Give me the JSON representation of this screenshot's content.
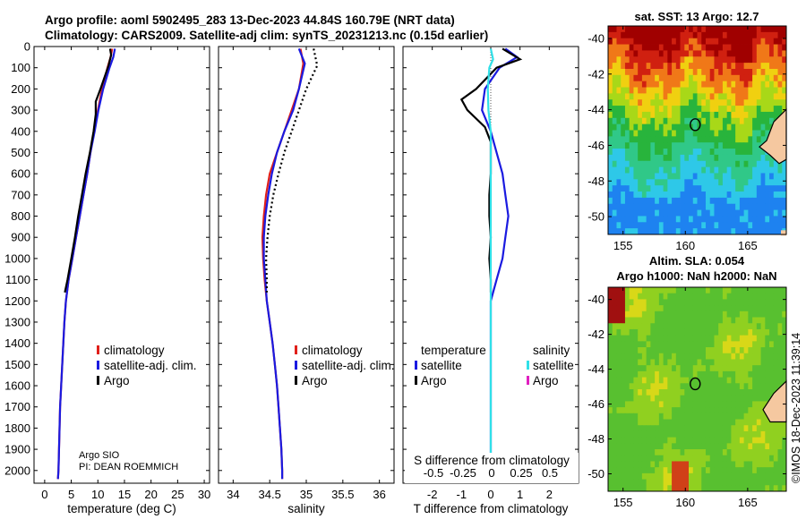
{
  "header": {
    "line1": "Argo profile: aoml 5902495_283 13-Dec-2023 44.84S 160.79E (NRT data)",
    "line2": "Climatology: CARS2009. Satellite-adj clim: synTS_20231213.nc (0.15d earlier)"
  },
  "colors": {
    "climatology": "#e0201a",
    "satellite_adj": "#1a1ae0",
    "argo": "#000000",
    "sat_t": "#1a1ae0",
    "sat_s": "#30e0e8",
    "argo_s": "#e020c0"
  },
  "depth_axis": {
    "ticks": [
      0,
      100,
      200,
      300,
      400,
      500,
      600,
      700,
      800,
      900,
      1000,
      1100,
      1200,
      1300,
      1400,
      1500,
      1600,
      1700,
      1800,
      1900,
      2000
    ],
    "range": [
      0,
      2060
    ]
  },
  "chart_data": [
    {
      "type": "line",
      "name": "temperature",
      "xlabel": "temperature (deg C)",
      "xlim": [
        -2,
        31
      ],
      "xticks": [
        0,
        5,
        10,
        15,
        20,
        25,
        30
      ],
      "legend": [
        "climatology",
        "satellite-adj. clim.",
        "Argo"
      ],
      "series": [
        {
          "name": "climatology",
          "color": "climatology",
          "points": [
            [
              12.7,
              10
            ],
            [
              12.4,
              50
            ],
            [
              11.8,
              100
            ],
            [
              10.8,
              200
            ],
            [
              10.0,
              300
            ],
            [
              9.3,
              400
            ],
            [
              8.6,
              500
            ],
            [
              8.0,
              600
            ],
            [
              7.3,
              700
            ],
            [
              6.6,
              800
            ],
            [
              5.9,
              900
            ],
            [
              5.2,
              1000
            ],
            [
              4.5,
              1100
            ],
            [
              4.0,
              1200
            ],
            [
              3.7,
              1300
            ],
            [
              3.5,
              1400
            ],
            [
              3.3,
              1500
            ],
            [
              3.1,
              1600
            ],
            [
              2.9,
              1700
            ],
            [
              2.8,
              1800
            ],
            [
              2.7,
              1900
            ],
            [
              2.6,
              2000
            ],
            [
              2.5,
              2040
            ]
          ]
        },
        {
          "name": "satellite-adj. clim.",
          "color": "satellite_adj",
          "points": [
            [
              13.2,
              10
            ],
            [
              12.9,
              50
            ],
            [
              12.2,
              100
            ],
            [
              11.0,
              200
            ],
            [
              10.1,
              300
            ],
            [
              9.4,
              400
            ],
            [
              8.6,
              500
            ],
            [
              8.0,
              600
            ],
            [
              7.3,
              700
            ],
            [
              6.6,
              800
            ],
            [
              5.9,
              900
            ],
            [
              5.2,
              1000
            ],
            [
              4.5,
              1100
            ],
            [
              4.0,
              1200
            ],
            [
              3.7,
              1300
            ],
            [
              3.5,
              1400
            ],
            [
              3.3,
              1500
            ],
            [
              3.1,
              1600
            ],
            [
              2.9,
              1700
            ],
            [
              2.8,
              1800
            ],
            [
              2.7,
              1900
            ],
            [
              2.6,
              2000
            ],
            [
              2.5,
              2040
            ]
          ]
        },
        {
          "name": "Argo",
          "color": "argo",
          "points": [
            [
              12.3,
              10
            ],
            [
              12.5,
              40
            ],
            [
              12.0,
              90
            ],
            [
              10.5,
              200
            ],
            [
              9.6,
              260
            ],
            [
              9.6,
              320
            ],
            [
              9.2,
              400
            ],
            [
              8.5,
              500
            ],
            [
              7.7,
              600
            ],
            [
              7.0,
              700
            ],
            [
              6.3,
              800
            ],
            [
              5.7,
              900
            ],
            [
              5.0,
              1000
            ],
            [
              4.3,
              1100
            ],
            [
              3.8,
              1160
            ]
          ]
        }
      ]
    },
    {
      "type": "line",
      "name": "salinity",
      "xlabel": "salinity",
      "xlim": [
        33.8,
        36.2
      ],
      "xticks": [
        34,
        34.5,
        35,
        35.5,
        36
      ],
      "legend": [
        "climatology",
        "satellite-adj. clim.",
        "Argo"
      ],
      "series": [
        {
          "name": "climatology",
          "color": "climatology",
          "points": [
            [
              34.92,
              10
            ],
            [
              34.96,
              80
            ],
            [
              34.9,
              200
            ],
            [
              34.8,
              300
            ],
            [
              34.7,
              400
            ],
            [
              34.6,
              500
            ],
            [
              34.5,
              600
            ],
            [
              34.45,
              700
            ],
            [
              34.42,
              800
            ],
            [
              34.4,
              900
            ],
            [
              34.41,
              1000
            ],
            [
              34.43,
              1100
            ],
            [
              34.46,
              1200
            ],
            [
              34.5,
              1300
            ],
            [
              34.54,
              1400
            ],
            [
              34.57,
              1500
            ],
            [
              34.6,
              1600
            ],
            [
              34.62,
              1700
            ],
            [
              34.64,
              1800
            ],
            [
              34.66,
              1900
            ],
            [
              34.67,
              2000
            ],
            [
              34.67,
              2040
            ]
          ]
        },
        {
          "name": "satellite-adj. clim.",
          "color": "satellite_adj",
          "points": [
            [
              34.9,
              10
            ],
            [
              34.98,
              80
            ],
            [
              34.9,
              200
            ],
            [
              34.82,
              300
            ],
            [
              34.7,
              400
            ],
            [
              34.6,
              500
            ],
            [
              34.53,
              600
            ],
            [
              34.48,
              700
            ],
            [
              34.44,
              800
            ],
            [
              34.42,
              900
            ],
            [
              34.42,
              1000
            ],
            [
              34.44,
              1100
            ],
            [
              34.46,
              1200
            ],
            [
              34.5,
              1300
            ],
            [
              34.54,
              1400
            ],
            [
              34.57,
              1500
            ],
            [
              34.6,
              1600
            ],
            [
              34.62,
              1700
            ],
            [
              34.64,
              1800
            ],
            [
              34.66,
              1900
            ],
            [
              34.67,
              2000
            ],
            [
              34.67,
              2040
            ]
          ]
        },
        {
          "name": "Argo",
          "color": "argo",
          "points": [
            [
              35.1,
              10
            ],
            [
              35.15,
              90
            ],
            [
              35.0,
              200
            ],
            [
              34.9,
              300
            ],
            [
              34.8,
              400
            ],
            [
              34.7,
              500
            ],
            [
              34.62,
              600
            ],
            [
              34.55,
              700
            ],
            [
              34.5,
              800
            ],
            [
              34.47,
              900
            ],
            [
              34.45,
              1000
            ],
            [
              34.46,
              1100
            ],
            [
              34.46,
              1160
            ]
          ]
        }
      ]
    },
    {
      "type": "line",
      "name": "difference",
      "xlabel": "T difference from climatology",
      "xlabel_top": "S difference from climatology",
      "xlim": [
        -3,
        3
      ],
      "xticks": [
        -2,
        -1,
        0,
        1,
        2
      ],
      "xticks_top": [
        "-0.5",
        "-0.25",
        "0",
        "0.25",
        "0.5"
      ],
      "legend_t_title": "temperature",
      "legend_s_title": "salinity",
      "legend_t": [
        "satellite",
        "Argo"
      ],
      "legend_s": [
        "satellite",
        "Argo"
      ],
      "series": [
        {
          "name": "satellite T",
          "color": "sat_t",
          "points": [
            [
              0.5,
              10
            ],
            [
              0.9,
              50
            ],
            [
              0.3,
              100
            ],
            [
              -0.2,
              200
            ],
            [
              -0.3,
              300
            ],
            [
              0.0,
              400
            ],
            [
              0.2,
              500
            ],
            [
              0.4,
              600
            ],
            [
              0.5,
              700
            ],
            [
              0.6,
              800
            ],
            [
              0.5,
              900
            ],
            [
              0.4,
              1000
            ],
            [
              0.2,
              1100
            ],
            [
              0.0,
              1200
            ],
            [
              0.0,
              2000
            ],
            [
              0.0,
              2040
            ]
          ]
        },
        {
          "name": "Argo T",
          "color": "argo",
          "points": [
            [
              0.4,
              10
            ],
            [
              1.0,
              60
            ],
            [
              0.2,
              100
            ],
            [
              -0.5,
              200
            ],
            [
              -1.0,
              250
            ],
            [
              -0.8,
              300
            ],
            [
              -0.2,
              380
            ],
            [
              0.0,
              450
            ],
            [
              0.0,
              600
            ],
            [
              -0.05,
              700
            ],
            [
              -0.05,
              800
            ],
            [
              0.0,
              900
            ],
            [
              -0.05,
              1000
            ],
            [
              0.0,
              1100
            ],
            [
              0.0,
              1160
            ]
          ]
        },
        {
          "name": "satellite S",
          "color": "sat_s",
          "points": [
            [
              0.0,
              10
            ],
            [
              0.08,
              60
            ],
            [
              -0.05,
              100
            ],
            [
              -0.1,
              200
            ],
            [
              -0.08,
              300
            ],
            [
              0.0,
              400
            ],
            [
              0.0,
              2040
            ]
          ]
        }
      ]
    }
  ],
  "legend_panel1": {
    "item1": "climatology",
    "item2": "satellite-adj. clim.",
    "item3": "Argo"
  },
  "legend_panel2": {
    "item1": "climatology",
    "item2": "satellite-adj. clim.",
    "item3": "Argo"
  },
  "legend_panel3": {
    "temperature": "temperature",
    "salinity": "salinity",
    "t_sat": "satellite",
    "t_argo": "Argo",
    "s_sat": "satellite",
    "s_argo": "Argo"
  },
  "credit": {
    "line1": "Argo SIO",
    "line2": "PI: DEAN ROEMMICH"
  },
  "maps": {
    "sst_title": "sat. SST: 13 Argo: 12.7",
    "sla_title1": "Altim. SLA: 0.054",
    "sla_title2": "Argo h1000: NaN h2000: NaN",
    "lat_ticks": [
      -40,
      -42,
      -44,
      -46,
      -48,
      -50
    ],
    "lon_ticks": [
      155,
      160,
      165
    ],
    "float_lat": -44.84,
    "float_lon": 160.79
  },
  "watermark": "©IMOS 18-Dec-2023 11:39:14"
}
